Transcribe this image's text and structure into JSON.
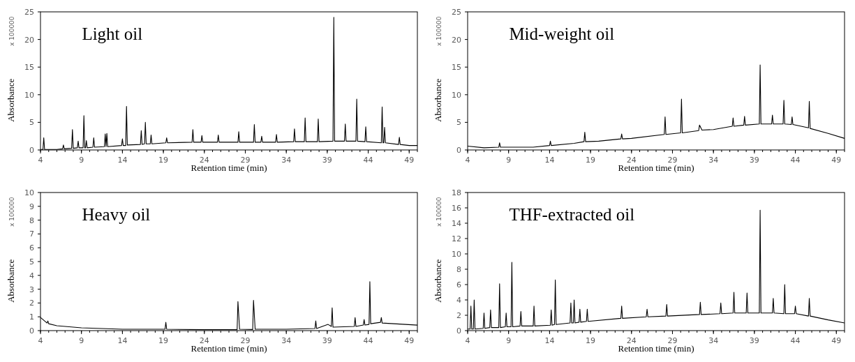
{
  "chart_data": [
    {
      "type": "line",
      "title": "Light oil",
      "xlabel": "Retention time (min)",
      "ylabel": "Absorbance",
      "annotations": [
        "x 100000"
      ],
      "xlim": [
        4,
        50
      ],
      "xticks": [
        4,
        9,
        14,
        19,
        24,
        29,
        34,
        39,
        44,
        49
      ],
      "ylim": [
        0,
        25
      ],
      "yticks": [
        0,
        5,
        10,
        15,
        20,
        25
      ],
      "grid": false,
      "series": [
        {
          "color": "#000000",
          "x": [
            4,
            4.3,
            4.4,
            4.5,
            6,
            6.7,
            6.8,
            6.9,
            7.8,
            7.9,
            8.0,
            8.5,
            8.6,
            8.7,
            9.2,
            9.3,
            9.4,
            9.5,
            9.6,
            9.7,
            10.4,
            10.5,
            10.6,
            11.8,
            11.9,
            12.0,
            12.1,
            12.2,
            13.9,
            14.0,
            14.1,
            14.4,
            14.5,
            14.6,
            16.2,
            16.3,
            16.4,
            16.7,
            16.8,
            16.9,
            17.4,
            17.5,
            17.6,
            19.3,
            19.4,
            19.5,
            22.5,
            22.6,
            22.7,
            23.6,
            23.7,
            23.8,
            25.6,
            25.7,
            25.8,
            28.1,
            28.2,
            28.3,
            30.0,
            30.1,
            30.2,
            30.9,
            31.0,
            31.1,
            32.7,
            32.8,
            32.9,
            34.9,
            35.0,
            35.1,
            36.2,
            36.3,
            36.4,
            37.8,
            37.9,
            38.0,
            39.7,
            39.8,
            39.9,
            41.1,
            41.2,
            41.3,
            42.5,
            42.6,
            42.7,
            43.6,
            43.7,
            43.8,
            45.6,
            45.7,
            45.8,
            45.9,
            46.0,
            46.1,
            47.7,
            47.8,
            47.9,
            49,
            50
          ],
          "values": [
            0.1,
            0.1,
            2.2,
            0.1,
            0.1,
            0.2,
            0.9,
            0.2,
            0.3,
            3.7,
            0.3,
            0.4,
            1.6,
            0.4,
            0.4,
            6.2,
            0.4,
            0.4,
            1.7,
            0.4,
            0.5,
            2.2,
            0.5,
            0.6,
            2.9,
            0.6,
            3.0,
            0.6,
            0.8,
            2.0,
            0.8,
            0.8,
            7.9,
            0.9,
            1.0,
            3.5,
            1.0,
            1.1,
            5.0,
            1.1,
            1.1,
            2.7,
            1.1,
            1.3,
            2.2,
            1.3,
            1.4,
            3.7,
            1.4,
            1.4,
            2.6,
            1.4,
            1.4,
            2.7,
            1.4,
            1.4,
            3.3,
            1.4,
            1.4,
            4.6,
            1.4,
            1.4,
            2.5,
            1.4,
            1.4,
            2.8,
            1.4,
            1.5,
            3.8,
            1.5,
            1.5,
            5.8,
            1.5,
            1.5,
            5.6,
            1.5,
            1.6,
            24,
            1.6,
            1.6,
            4.7,
            1.6,
            1.6,
            9.2,
            1.6,
            1.5,
            4.2,
            1.5,
            1.3,
            7.8,
            1.3,
            1.3,
            4.1,
            1.3,
            1.0,
            2.3,
            1.0,
            0.8,
            0.8
          ]
        }
      ]
    },
    {
      "type": "line",
      "title": "Mid-weight oil",
      "xlabel": "Retention time (min)",
      "ylabel": "Absorbance",
      "annotations": [
        "x 100000"
      ],
      "xlim": [
        4,
        50
      ],
      "xticks": [
        4,
        9,
        14,
        19,
        24,
        29,
        34,
        39,
        44,
        49
      ],
      "ylim": [
        0,
        25
      ],
      "yticks": [
        0,
        5,
        10,
        15,
        20,
        25
      ],
      "grid": false,
      "series": [
        {
          "color": "#000000",
          "x": [
            4,
            6,
            7.8,
            7.9,
            8.0,
            12,
            14.0,
            14.1,
            14.2,
            17,
            18.2,
            18.3,
            18.4,
            20,
            22.7,
            22.8,
            22.9,
            24,
            28.0,
            28.1,
            28.2,
            30.0,
            30.1,
            30.2,
            32.2,
            32.3,
            32.6,
            34,
            36.3,
            36.4,
            36.5,
            37.7,
            37.8,
            37.9,
            39.6,
            39.7,
            39.8,
            41.1,
            41.2,
            41.3,
            42.5,
            42.6,
            42.7,
            43.5,
            43.6,
            43.7,
            45.6,
            45.7,
            45.8,
            48,
            50
          ],
          "values": [
            0.7,
            0.4,
            0.5,
            1.3,
            0.5,
            0.5,
            0.8,
            1.6,
            0.8,
            1.2,
            1.5,
            3.2,
            1.5,
            1.6,
            2.0,
            2.9,
            2.0,
            2.1,
            2.8,
            6.0,
            2.8,
            3.1,
            9.2,
            3.1,
            3.5,
            4.5,
            3.6,
            3.7,
            4.3,
            5.8,
            4.3,
            4.5,
            6.1,
            4.5,
            4.7,
            15.4,
            4.7,
            4.7,
            6.3,
            4.7,
            4.7,
            9.0,
            4.7,
            4.6,
            6.0,
            4.6,
            4.0,
            8.8,
            3.9,
            3.0,
            2.1
          ]
        }
      ]
    },
    {
      "type": "line",
      "title": "Heavy oil",
      "xlabel": "Retention time (min)",
      "ylabel": "Absorbance",
      "annotations": [
        "x 100000"
      ],
      "xlim": [
        4,
        50
      ],
      "xticks": [
        4,
        9,
        14,
        19,
        24,
        29,
        34,
        39,
        44,
        49
      ],
      "ylim": [
        0,
        10
      ],
      "yticks": [
        0,
        1,
        2,
        3,
        4,
        5,
        6,
        7,
        8,
        9,
        10
      ],
      "grid": false,
      "series": [
        {
          "color": "#000000",
          "x": [
            4,
            4.8,
            4.9,
            5.0,
            6,
            9,
            14,
            19.2,
            19.3,
            19.4,
            24,
            28.0,
            28.1,
            28.3,
            29.9,
            30.0,
            30.2,
            34,
            37.5,
            37.6,
            37.7,
            39.1,
            39.5,
            39.6,
            39.7,
            42.3,
            42.4,
            42.5,
            43.4,
            43.5,
            43.6,
            44.1,
            44.2,
            44.3,
            45.5,
            45.6,
            45.7,
            50
          ],
          "values": [
            0.95,
            0.55,
            0.7,
            0.5,
            0.35,
            0.2,
            0.1,
            0.1,
            0.6,
            0.1,
            0.07,
            0.07,
            2.1,
            0.1,
            0.08,
            2.2,
            0.1,
            0.1,
            0.15,
            0.7,
            0.15,
            0.45,
            0.3,
            1.65,
            0.25,
            0.3,
            0.95,
            0.3,
            0.4,
            0.8,
            0.4,
            0.45,
            3.55,
            0.5,
            0.6,
            0.95,
            0.55,
            0.4
          ]
        }
      ]
    },
    {
      "type": "line",
      "title": "THF-extracted oil",
      "xlabel": "Retention time (min)",
      "ylabel": "Absorbance",
      "annotations": [
        "x 100000"
      ],
      "xlim": [
        4,
        50
      ],
      "xticks": [
        4,
        9,
        14,
        19,
        24,
        29,
        34,
        39,
        44,
        49
      ],
      "ylim": [
        0,
        18
      ],
      "yticks": [
        0,
        2,
        4,
        6,
        8,
        10,
        12,
        14,
        16,
        18
      ],
      "grid": false,
      "series": [
        {
          "color": "#000000",
          "x": [
            4,
            4.3,
            4.4,
            4.5,
            4.7,
            4.8,
            4.9,
            5.9,
            6.0,
            6.1,
            6.7,
            6.8,
            6.9,
            7.8,
            7.9,
            8.0,
            8.6,
            8.7,
            8.8,
            9.3,
            9.4,
            9.5,
            10.4,
            10.5,
            10.6,
            12.0,
            12.1,
            12.2,
            14.1,
            14.2,
            14.3,
            14.6,
            14.7,
            14.8,
            16.5,
            16.6,
            16.7,
            16.9,
            17.0,
            17.1,
            17.6,
            17.7,
            17.8,
            18.5,
            18.6,
            18.7,
            22.7,
            22.8,
            22.9,
            25.8,
            25.9,
            26.0,
            28.2,
            28.3,
            28.4,
            32.3,
            32.4,
            32.5,
            34.8,
            34.9,
            35.0,
            36.4,
            36.5,
            36.6,
            38.0,
            38.1,
            38.2,
            39.6,
            39.7,
            39.8,
            41.2,
            41.3,
            41.4,
            42.6,
            42.7,
            42.8,
            43.9,
            44.0,
            44.1,
            45.6,
            45.7,
            45.8,
            48,
            50
          ],
          "values": [
            0.2,
            0.2,
            3.2,
            0.2,
            0.2,
            4.0,
            0.2,
            0.3,
            2.3,
            0.3,
            0.4,
            2.7,
            0.4,
            0.4,
            6.1,
            0.4,
            0.5,
            2.3,
            0.5,
            0.5,
            8.9,
            0.5,
            0.6,
            2.5,
            0.6,
            0.6,
            3.2,
            0.6,
            0.7,
            2.7,
            0.7,
            0.8,
            6.6,
            0.8,
            1.0,
            3.6,
            1.0,
            1.0,
            4.0,
            1.0,
            1.1,
            2.8,
            1.1,
            1.2,
            2.8,
            1.2,
            1.6,
            3.2,
            1.6,
            1.8,
            2.8,
            1.8,
            1.9,
            3.4,
            1.9,
            2.1,
            3.7,
            2.1,
            2.2,
            3.6,
            2.2,
            2.3,
            5.0,
            2.3,
            2.3,
            4.9,
            2.3,
            2.3,
            15.7,
            2.3,
            2.3,
            4.2,
            2.3,
            2.2,
            6.0,
            2.2,
            2.2,
            3.2,
            2.2,
            1.9,
            4.2,
            1.9,
            1.4,
            1.0
          ]
        }
      ]
    }
  ]
}
